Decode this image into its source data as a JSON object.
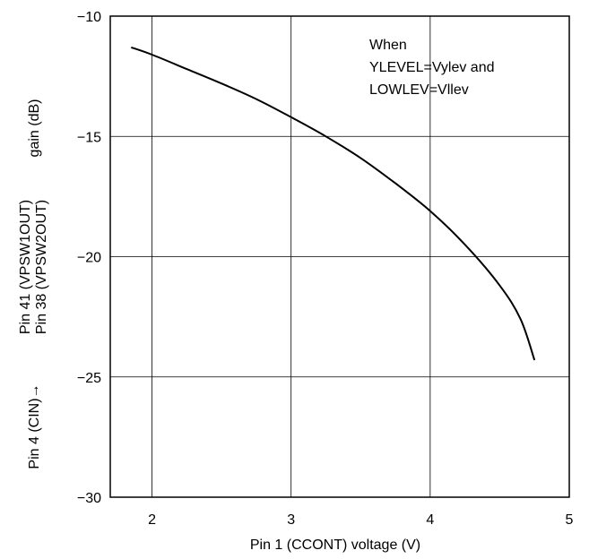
{
  "chart_data": {
    "type": "line",
    "title": "",
    "xlabel": "Pin 1 (CCONT) voltage (V)",
    "ylabel_lines": {
      "prefix": "Pin 4  (CIN)→",
      "line1": "Pin 41 (VPSW1OUT)",
      "line2": "Pin 38 (VPSW2OUT)",
      "suffix": "gain (dB)"
    },
    "xlim": [
      1.7,
      5
    ],
    "ylim": [
      -30,
      -10
    ],
    "x_ticks": [
      2,
      3,
      4,
      5
    ],
    "x_tick_labels": [
      "2",
      "3",
      "4",
      "5"
    ],
    "y_ticks": [
      -10,
      -15,
      -20,
      -25,
      -30
    ],
    "y_tick_labels": [
      "−10",
      "−15",
      "−20",
      "−25",
      "−30"
    ],
    "grid": true,
    "annotation": [
      "When",
      "YLEVEL=Vylev and",
      "LOWLEV=Vllev"
    ],
    "series": [
      {
        "color": "#000000",
        "points": [
          [
            1.85,
            -11.3
          ],
          [
            2.0,
            -11.6
          ],
          [
            2.25,
            -12.2
          ],
          [
            2.5,
            -12.8
          ],
          [
            2.75,
            -13.45
          ],
          [
            3.0,
            -14.2
          ],
          [
            3.25,
            -15.0
          ],
          [
            3.5,
            -15.9
          ],
          [
            3.75,
            -16.95
          ],
          [
            4.0,
            -18.1
          ],
          [
            4.25,
            -19.5
          ],
          [
            4.5,
            -21.2
          ],
          [
            4.65,
            -22.6
          ],
          [
            4.75,
            -24.3
          ]
        ]
      }
    ]
  }
}
